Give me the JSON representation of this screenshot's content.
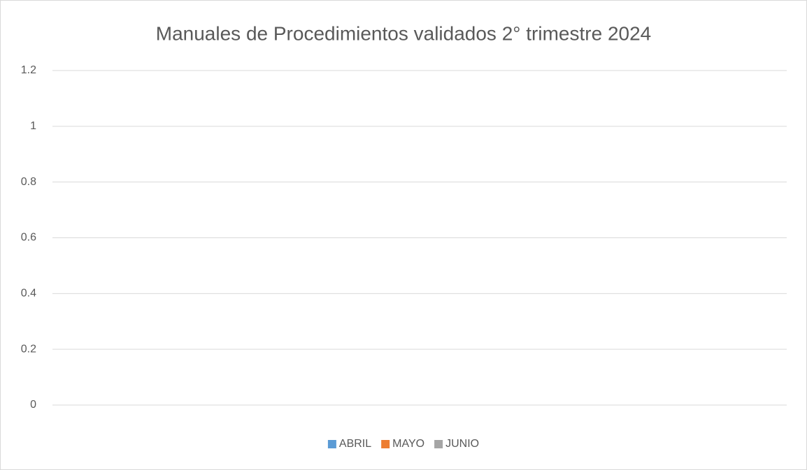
{
  "chart_data": {
    "type": "bar",
    "title": "Manuales de Procedimientos validados 2° trimestre 2024",
    "categories": [],
    "series": [
      {
        "name": "ABRIL",
        "color": "#5b9bd5",
        "values": []
      },
      {
        "name": "MAYO",
        "color": "#ed7d31",
        "values": []
      },
      {
        "name": "JUNIO",
        "color": "#a5a5a5",
        "values": []
      }
    ],
    "ylim": [
      0,
      1.2
    ],
    "yticks": [
      0,
      0.2,
      0.4,
      0.6,
      0.8,
      1,
      1.2
    ],
    "grid": true,
    "legend": "bottom"
  }
}
